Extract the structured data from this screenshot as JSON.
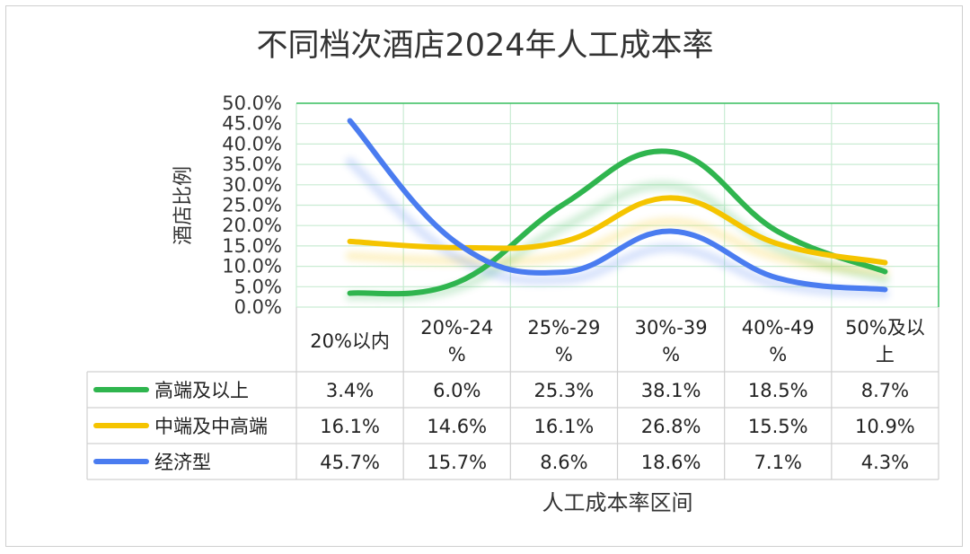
{
  "chart_data": {
    "type": "line",
    "title": "不同档次酒店2024年人工成本率",
    "xlabel": "人工成本率区间",
    "ylabel": "酒店比例",
    "ylim": [
      0,
      50
    ],
    "yticks": [
      "0.0%",
      "5.0%",
      "10.0%",
      "15.0%",
      "20.0%",
      "25.0%",
      "30.0%",
      "35.0%",
      "40.0%",
      "45.0%",
      "50.0%"
    ],
    "categories": [
      [
        "20%以内"
      ],
      [
        "20%-24",
        "%"
      ],
      [
        "25%-29",
        "%"
      ],
      [
        "30%-39",
        "%"
      ],
      [
        "40%-49",
        "%"
      ],
      [
        "50%及以",
        "上"
      ]
    ],
    "series": [
      {
        "name": "高端及以上",
        "color": "#2fb54e",
        "values": [
          3.4,
          6.0,
          25.3,
          38.1,
          18.5,
          8.7
        ],
        "labels": [
          "3.4%",
          "6.0%",
          "25.3%",
          "38.1%",
          "18.5%",
          "8.7%"
        ]
      },
      {
        "name": "中端及中高端",
        "color": "#f5c400",
        "values": [
          16.1,
          14.6,
          16.1,
          26.8,
          15.5,
          10.9
        ],
        "labels": [
          "16.1%",
          "14.6%",
          "16.1%",
          "26.8%",
          "15.5%",
          "10.9%"
        ]
      },
      {
        "name": "经济型",
        "color": "#4a7cf0",
        "values": [
          45.7,
          15.7,
          8.6,
          18.6,
          7.1,
          4.3
        ],
        "labels": [
          "45.7%",
          "15.7%",
          "8.6%",
          "18.6%",
          "7.1%",
          "4.3%"
        ]
      }
    ],
    "grid": true,
    "legend": "data-table"
  }
}
